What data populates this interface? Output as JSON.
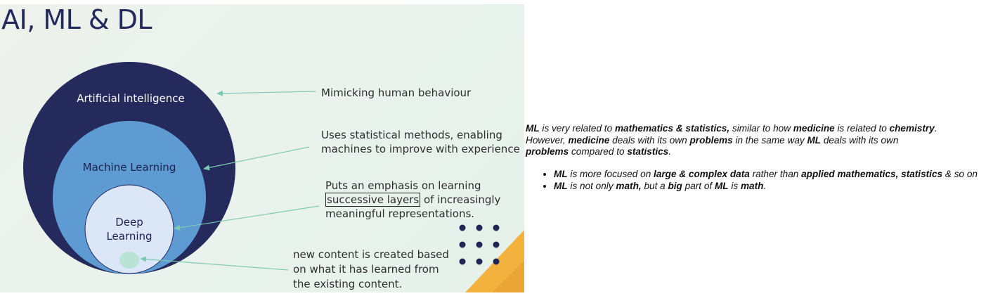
{
  "slide": {
    "title": "AI, ML & DL",
    "circles": {
      "ai": "Artificial intelligence",
      "ml": "Machine Learning",
      "dl": "Deep\nLearning"
    },
    "descriptions": {
      "ai": "Mimicking human behaviour",
      "ml_line1": "Uses statistical methods, enabling",
      "ml_line2": "machines to improve with experience",
      "dl_line1": "Puts an emphasis on learning",
      "dl_boxed": "successive layers",
      "dl_line2_rest": " of increasingly",
      "dl_line3": "meaningful representations.",
      "gen_line1": "new content is created based",
      "gen_line2": "on what it has learned from",
      "gen_line3": "the existing content."
    },
    "colors": {
      "ai_circle": "#252a5c",
      "ml_circle": "#5e9bd2",
      "dl_circle": "#dbe6f7",
      "gen_blob": "#b9e3d5",
      "arrow": "#7ec9b4",
      "dots": "#1f2555",
      "accent": "#f0b13c"
    }
  },
  "notes": {
    "p1": [
      "ML",
      " is very related to ",
      "mathematics & statistics,",
      " similar to how ",
      "medicine",
      " is related to ",
      "chemistry",
      "."
    ],
    "p2": [
      "However, ",
      "medicine",
      " deals with its own ",
      "problems",
      " in the same way ",
      "ML",
      " deals with its own"
    ],
    "p3": [
      "problems",
      " compared to ",
      "statistics",
      "."
    ],
    "b1": [
      "ML",
      " is more focused on ",
      "large & complex data",
      " rather than ",
      "applied mathematics, statistics",
      " & so on"
    ],
    "b2": [
      "ML",
      " is not only ",
      "math,",
      " but a ",
      "big",
      " part of ",
      "ML",
      " is ",
      "math",
      "."
    ]
  }
}
